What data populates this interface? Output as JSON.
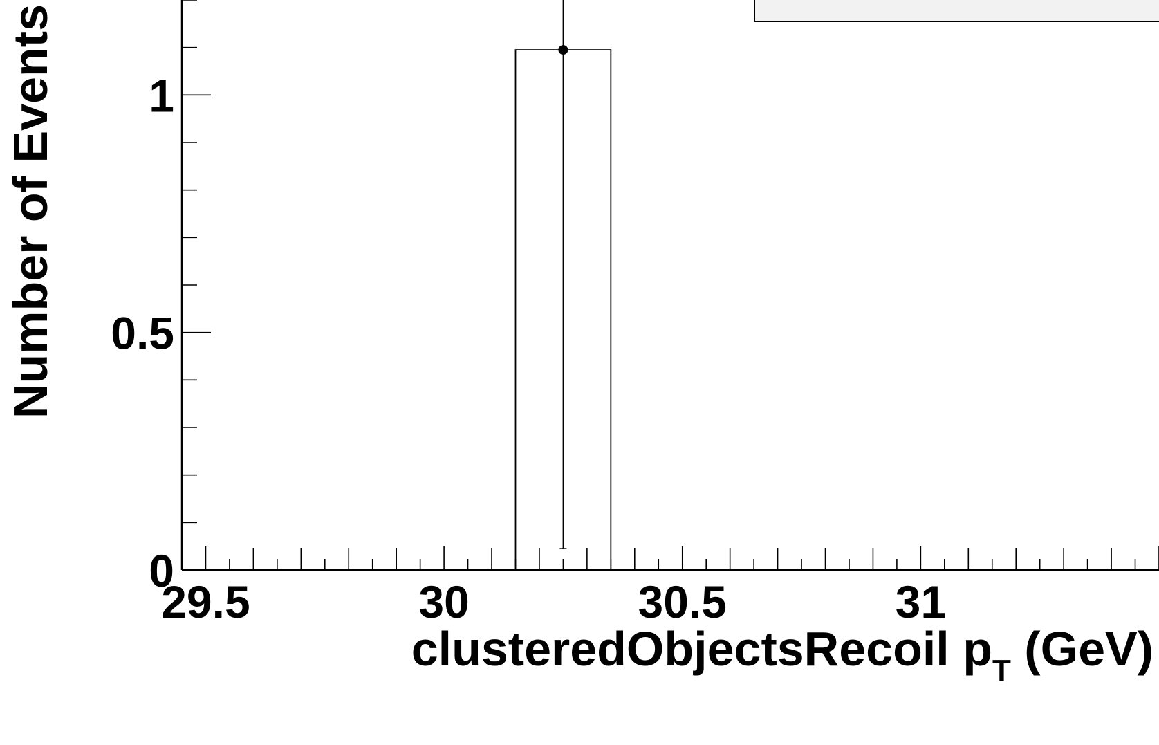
{
  "chart_data": {
    "type": "histogram",
    "xlabel": "clusteredObjectsRecoil p",
    "xlabel_subscript": "T",
    "xlabel_suffix": " (GeV)",
    "ylabel": "Number of Events",
    "xlim": [
      29.45,
      31.5
    ],
    "ylim": [
      0,
      1.2
    ],
    "x_major_ticks": [
      29.5,
      30,
      30.5,
      31
    ],
    "x_tick_labels": [
      "29.5",
      "30",
      "30.5",
      "31"
    ],
    "y_major_ticks": [
      0,
      0.5,
      1
    ],
    "y_tick_labels": [
      "0",
      "0.5",
      "1"
    ],
    "bins": [
      {
        "low": 30.15,
        "high": 30.35,
        "value": 1.095
      }
    ],
    "points": [
      {
        "x": 30.25,
        "y": 1.095,
        "yerr_low": 1.05,
        "yerr_high": 1.2
      }
    ],
    "legend_position": "top-right",
    "grid": false
  }
}
